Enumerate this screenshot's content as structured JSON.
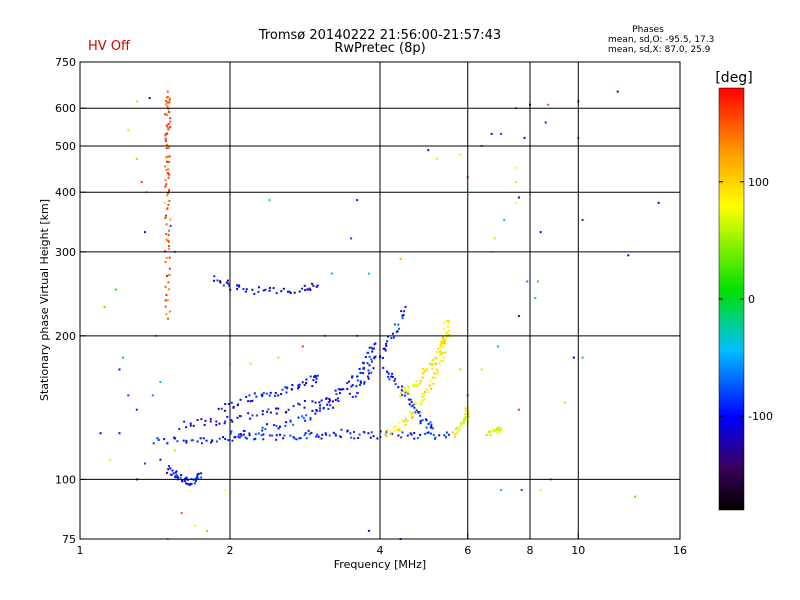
{
  "status_label": "HV Off",
  "colors": {
    "status": "#d00000",
    "grid": "#000000",
    "text": "#000000"
  },
  "chart_data": {
    "type": "scatter",
    "title": "Tromsø 20140222 21:56:00-21:57:43",
    "subtitle": "RwPretec (8p)",
    "xlabel": "Frequency [MHz]",
    "ylabel": "Stationary phase Virtual Height [km]",
    "x_scale": "log",
    "y_scale": "log",
    "xlim": [
      1,
      16
    ],
    "ylim": [
      75,
      750
    ],
    "x_ticks": [
      1,
      2,
      4,
      6,
      8,
      10,
      16
    ],
    "y_ticks": [
      75,
      100,
      200,
      300,
      400,
      500,
      600,
      750
    ],
    "x_grid": [
      2,
      4,
      6,
      8,
      10
    ],
    "y_grid": [
      100,
      200,
      300,
      400,
      500,
      600
    ],
    "grid": true,
    "phase_stats": {
      "heading": "Phases",
      "o_mode": "mean, sd,O: -95.5, 17.3",
      "x_mode": "mean, sd,X:  87.0, 25.9"
    },
    "colorbar": {
      "label": "[deg]",
      "range": [
        -180,
        180
      ],
      "ticks": [
        100,
        0,
        -100
      ],
      "tick_labels": [
        "100",
        "0",
        "-100"
      ]
    },
    "traces": [
      {
        "mode": "O",
        "phase": -95,
        "points": [
          [
            1.4,
            120
          ],
          [
            1.6,
            121
          ],
          [
            1.8,
            121
          ],
          [
            2.0,
            122
          ],
          [
            2.2,
            122
          ],
          [
            2.5,
            123
          ],
          [
            2.8,
            124
          ],
          [
            3.0,
            124
          ],
          [
            3.3,
            125
          ],
          [
            3.6,
            124
          ],
          [
            4.0,
            124
          ],
          [
            4.5,
            124
          ],
          [
            5.0,
            124
          ],
          [
            5.5,
            124
          ]
        ]
      },
      {
        "mode": "O",
        "phase": -100,
        "points": [
          [
            1.6,
            130
          ],
          [
            1.8,
            132
          ],
          [
            2.0,
            134
          ],
          [
            2.3,
            137
          ],
          [
            2.6,
            140
          ],
          [
            3.0,
            145
          ],
          [
            3.3,
            152
          ],
          [
            3.5,
            160
          ],
          [
            3.7,
            170
          ],
          [
            3.8,
            182
          ],
          [
            3.9,
            192
          ]
        ]
      },
      {
        "mode": "O",
        "phase": -90,
        "points": [
          [
            2.0,
            125
          ],
          [
            2.3,
            127
          ],
          [
            2.6,
            131
          ],
          [
            2.9,
            136
          ],
          [
            3.1,
            142
          ],
          [
            3.3,
            146
          ]
        ]
      },
      {
        "mode": "O",
        "phase": -100,
        "points": [
          [
            1.9,
            140
          ],
          [
            2.1,
            146
          ],
          [
            2.3,
            150
          ],
          [
            2.5,
            152
          ],
          [
            2.7,
            156
          ],
          [
            2.9,
            160
          ],
          [
            3.0,
            165
          ]
        ]
      },
      {
        "mode": "O",
        "phase": -105,
        "points": [
          [
            1.85,
            262
          ],
          [
            2.0,
            255
          ],
          [
            2.2,
            250
          ],
          [
            2.5,
            247
          ],
          [
            2.8,
            250
          ],
          [
            3.0,
            255
          ]
        ]
      },
      {
        "mode": "O",
        "phase": -95,
        "points": [
          [
            1.5,
            105
          ],
          [
            1.55,
            102
          ],
          [
            1.6,
            100
          ],
          [
            1.65,
            98
          ],
          [
            1.7,
            100
          ],
          [
            1.75,
            103
          ]
        ]
      },
      {
        "mode": "O",
        "phase": -98,
        "points": [
          [
            3.5,
            150
          ],
          [
            3.7,
            160
          ],
          [
            3.9,
            175
          ],
          [
            4.1,
            190
          ],
          [
            4.3,
            205
          ],
          [
            4.5,
            230
          ]
        ]
      },
      {
        "mode": "O",
        "phase": -90,
        "points": [
          [
            4.1,
            170
          ],
          [
            4.3,
            160
          ],
          [
            4.5,
            150
          ],
          [
            4.7,
            140
          ],
          [
            4.9,
            132
          ],
          [
            5.1,
            128
          ]
        ]
      },
      {
        "mode": "X",
        "phase": 90,
        "points": [
          [
            4.1,
            124
          ],
          [
            4.3,
            127
          ],
          [
            4.5,
            132
          ],
          [
            4.7,
            140
          ],
          [
            4.9,
            150
          ],
          [
            5.1,
            162
          ],
          [
            5.3,
            178
          ],
          [
            5.4,
            192
          ],
          [
            5.5,
            205
          ]
        ]
      },
      {
        "mode": "X",
        "phase": 85,
        "points": [
          [
            4.4,
            150
          ],
          [
            4.6,
            155
          ],
          [
            4.8,
            162
          ],
          [
            5.0,
            170
          ],
          [
            5.2,
            180
          ],
          [
            5.3,
            190
          ],
          [
            5.4,
            200
          ],
          [
            5.45,
            215
          ]
        ]
      },
      {
        "mode": "X",
        "phase": 80,
        "points": [
          [
            5.6,
            125
          ],
          [
            5.8,
            130
          ],
          [
            6.0,
            135
          ],
          [
            6.0,
            140
          ]
        ]
      },
      {
        "mode": "X",
        "phase": 70,
        "points": [
          [
            6.6,
            125
          ],
          [
            6.8,
            126
          ],
          [
            7.0,
            128
          ]
        ]
      },
      {
        "mode": "X",
        "phase": 150,
        "points": [
          [
            1.5,
            220
          ],
          [
            1.5,
            260
          ],
          [
            1.5,
            300
          ],
          [
            1.5,
            350
          ],
          [
            1.5,
            400
          ],
          [
            1.5,
            450
          ],
          [
            1.5,
            500
          ],
          [
            1.5,
            550
          ],
          [
            1.5,
            600
          ],
          [
            1.5,
            650
          ]
        ]
      }
    ],
    "scattered_points": [
      [
        1.1,
        125,
        -100
      ],
      [
        1.15,
        110,
        70
      ],
      [
        1.2,
        125,
        -95
      ],
      [
        1.22,
        180,
        -20
      ],
      [
        1.25,
        540,
        60
      ],
      [
        1.3,
        470,
        40
      ],
      [
        1.3,
        620,
        60
      ],
      [
        1.12,
        230,
        30
      ],
      [
        1.18,
        250,
        10
      ],
      [
        1.35,
        330,
        -110
      ],
      [
        1.38,
        630,
        -100
      ],
      [
        1.33,
        420,
        160
      ],
      [
        1.36,
        400,
        130
      ],
      [
        1.4,
        150,
        -60
      ],
      [
        1.42,
        200,
        -20
      ],
      [
        1.45,
        160,
        -40
      ],
      [
        1.48,
        380,
        100
      ],
      [
        1.52,
        340,
        -80
      ],
      [
        1.55,
        300,
        -60
      ],
      [
        1.6,
        85,
        150
      ],
      [
        1.7,
        80,
        70
      ],
      [
        1.8,
        78,
        40
      ],
      [
        1.5,
        75,
        30
      ],
      [
        1.95,
        95,
        80
      ],
      [
        2.4,
        385,
        -20
      ],
      [
        3.6,
        385,
        -100
      ],
      [
        3.5,
        320,
        -80
      ],
      [
        3.8,
        270,
        -40
      ],
      [
        3.2,
        270,
        -50
      ],
      [
        4.4,
        290,
        120
      ],
      [
        5.0,
        490,
        -100
      ],
      [
        5.2,
        470,
        60
      ],
      [
        5.8,
        480,
        90
      ],
      [
        6.0,
        430,
        150
      ],
      [
        6.4,
        500,
        -60
      ],
      [
        6.7,
        530,
        -100
      ],
      [
        7.0,
        530,
        -80
      ],
      [
        7.5,
        600,
        150
      ],
      [
        7.5,
        450,
        80
      ],
      [
        7.5,
        420,
        100
      ],
      [
        7.5,
        380,
        70
      ],
      [
        7.6,
        390,
        -110
      ],
      [
        7.8,
        520,
        -100
      ],
      [
        7.1,
        350,
        -40
      ],
      [
        6.8,
        320,
        60
      ],
      [
        6.7,
        300,
        60
      ],
      [
        7.9,
        260,
        -60
      ],
      [
        8.0,
        610,
        -100
      ],
      [
        8.4,
        330,
        -100
      ],
      [
        8.6,
        560,
        -90
      ],
      [
        8.7,
        610,
        150
      ],
      [
        10.0,
        620,
        -90
      ],
      [
        10.0,
        520,
        -60
      ],
      [
        10.2,
        350,
        -90
      ],
      [
        12.0,
        650,
        -110
      ],
      [
        12.6,
        295,
        -100
      ],
      [
        14.5,
        380,
        -110
      ],
      [
        9.8,
        180,
        -120
      ],
      [
        10.2,
        180,
        -20
      ],
      [
        9.4,
        145,
        60
      ],
      [
        8.8,
        100,
        160
      ],
      [
        8.4,
        95,
        70
      ],
      [
        7.7,
        95,
        -80
      ],
      [
        7.6,
        140,
        160
      ],
      [
        7.0,
        95,
        -20
      ],
      [
        6.4,
        170,
        60
      ],
      [
        6.0,
        150,
        160
      ],
      [
        5.8,
        170,
        50
      ],
      [
        13.0,
        92,
        30
      ],
      [
        4.4,
        75,
        -90
      ],
      [
        3.8,
        78,
        -100
      ],
      [
        3.6,
        200,
        170
      ],
      [
        2.8,
        190,
        160
      ],
      [
        3.1,
        200,
        150
      ],
      [
        2.2,
        175,
        60
      ],
      [
        2.0,
        175,
        80
      ],
      [
        2.5,
        180,
        100
      ],
      [
        7.6,
        220,
        -100
      ],
      [
        8.2,
        240,
        -40
      ],
      [
        8.3,
        260,
        20
      ],
      [
        6.9,
        190,
        -20
      ],
      [
        1.3,
        140,
        -90
      ],
      [
        1.25,
        150,
        -80
      ],
      [
        1.2,
        170,
        -100
      ],
      [
        1.45,
        110,
        -100
      ],
      [
        1.35,
        108,
        -80
      ],
      [
        1.55,
        115,
        60
      ],
      [
        1.3,
        100,
        -110
      ]
    ]
  }
}
